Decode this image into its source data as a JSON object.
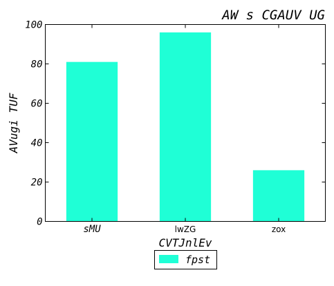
{
  "chart_data": {
    "type": "bar",
    "title": "AW s CGAUV UG",
    "xlabel": "CVTJnlEv",
    "ylabel": "AVugi TUF",
    "categories": [
      "sMU",
      "lwZG",
      "zox"
    ],
    "series": [
      {
        "name": "fpst",
        "values": [
          81,
          96,
          26
        ],
        "color": "#1fffd6"
      }
    ],
    "ylim": [
      0,
      100
    ],
    "yticks": [
      "0",
      "20",
      "40",
      "60",
      "80",
      "100"
    ],
    "grid": false,
    "legend": "bottom-center"
  }
}
